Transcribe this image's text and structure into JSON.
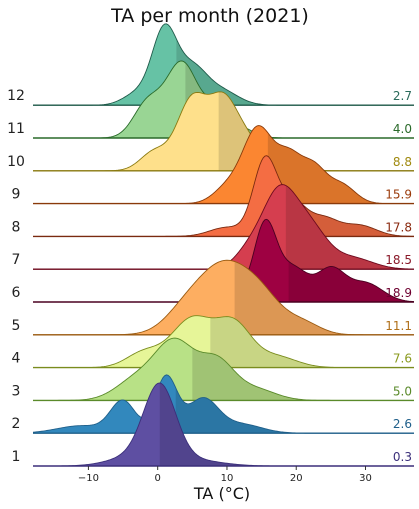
{
  "chart_data": {
    "type": "ridgeline",
    "title": "TA per month (2021)",
    "xlabel": "TA (°C)",
    "ylabel": "",
    "xlim": [
      -18,
      37
    ],
    "xticks": [
      -10,
      0,
      10,
      20,
      30
    ],
    "grid": false,
    "legend": "none",
    "series": [
      {
        "month": "1",
        "mean": "0.3",
        "color": "#5e4fa2",
        "line_color": "#3b2f7a",
        "mean_color": "#3b2f7a",
        "peaks": [
          {
            "mu": 0.3,
            "sigma": 2.3,
            "amp": 1.0
          },
          {
            "mu": -3.5,
            "sigma": 3.5,
            "amp": 0.12
          },
          {
            "mu": 5,
            "sigma": 4,
            "amp": 0.08
          }
        ]
      },
      {
        "month": "2",
        "mean": "2.6",
        "color": "#3288bd",
        "line_color": "#1f5f8a",
        "mean_color": "#1f5f8a",
        "peaks": [
          {
            "mu": 1.2,
            "sigma": 1.6,
            "amp": 0.75
          },
          {
            "mu": -5,
            "sigma": 1.8,
            "amp": 0.42
          },
          {
            "mu": 6.5,
            "sigma": 2.2,
            "amp": 0.45
          },
          {
            "mu": -11,
            "sigma": 3.5,
            "amp": 0.1
          },
          {
            "mu": 12,
            "sigma": 3,
            "amp": 0.12
          }
        ]
      },
      {
        "month": "3",
        "mean": "5.0",
        "color": "#b8e186",
        "line_color": "#5a8a2a",
        "mean_color": "#5a8a2a",
        "peaks": [
          {
            "mu": 2.5,
            "sigma": 2.8,
            "amp": 0.75
          },
          {
            "mu": 8.5,
            "sigma": 2.5,
            "amp": 0.5
          },
          {
            "mu": -3,
            "sigma": 3,
            "amp": 0.28
          },
          {
            "mu": 14,
            "sigma": 3,
            "amp": 0.15
          }
        ]
      },
      {
        "month": "4",
        "mean": "7.6",
        "color": "#e6f598",
        "line_color": "#7a8c1e",
        "mean_color": "#8a9a1e",
        "peaks": [
          {
            "mu": 5,
            "sigma": 3,
            "amp": 0.65
          },
          {
            "mu": 11,
            "sigma": 2.5,
            "amp": 0.55
          },
          {
            "mu": -2,
            "sigma": 2.5,
            "amp": 0.2
          },
          {
            "mu": 17,
            "sigma": 3,
            "amp": 0.15
          }
        ]
      },
      {
        "month": "5",
        "mean": "11.1",
        "color": "#fdae61",
        "line_color": "#9a5a10",
        "mean_color": "#b0701a",
        "peaks": [
          {
            "mu": 9.5,
            "sigma": 3.5,
            "amp": 0.85
          },
          {
            "mu": 15,
            "sigma": 3,
            "amp": 0.45
          },
          {
            "mu": 4,
            "sigma": 3,
            "amp": 0.3
          },
          {
            "mu": 21,
            "sigma": 2.5,
            "amp": 0.15
          }
        ]
      },
      {
        "month": "6",
        "mean": "18.9",
        "color": "#9e0142",
        "line_color": "#4a0020",
        "mean_color": "#6e0030",
        "peaks": [
          {
            "mu": 15.5,
            "sigma": 1.6,
            "amp": 1.0
          },
          {
            "mu": 19.5,
            "sigma": 2.2,
            "amp": 0.45
          },
          {
            "mu": 25,
            "sigma": 2,
            "amp": 0.42
          },
          {
            "mu": 30,
            "sigma": 2.5,
            "amp": 0.25
          },
          {
            "mu": 11,
            "sigma": 2,
            "amp": 0.15
          }
        ]
      },
      {
        "month": "7",
        "mean": "18.5",
        "color": "#d53e4f",
        "line_color": "#6e0a1e",
        "mean_color": "#8a1a2a",
        "peaks": [
          {
            "mu": 17.5,
            "sigma": 2.5,
            "amp": 1.0
          },
          {
            "mu": 22,
            "sigma": 2.5,
            "amp": 0.5
          },
          {
            "mu": 13,
            "sigma": 2,
            "amp": 0.2
          },
          {
            "mu": 28,
            "sigma": 3,
            "amp": 0.15
          }
        ]
      },
      {
        "month": "8",
        "mean": "17.8",
        "color": "#f46d43",
        "line_color": "#7a2a10",
        "mean_color": "#8a2a10",
        "peaks": [
          {
            "mu": 15.5,
            "sigma": 1.7,
            "amp": 1.0
          },
          {
            "mu": 19.5,
            "sigma": 2,
            "amp": 0.45
          },
          {
            "mu": 24,
            "sigma": 2,
            "amp": 0.22
          },
          {
            "mu": 29,
            "sigma": 2.5,
            "amp": 0.15
          },
          {
            "mu": 10,
            "sigma": 2.5,
            "amp": 0.12
          }
        ]
      },
      {
        "month": "9",
        "mean": "15.9",
        "color": "#fb8631",
        "line_color": "#8a3a0a",
        "mean_color": "#9a3a0a",
        "peaks": [
          {
            "mu": 14.5,
            "sigma": 2.2,
            "amp": 1.0
          },
          {
            "mu": 19,
            "sigma": 1.8,
            "amp": 0.55
          },
          {
            "mu": 22.5,
            "sigma": 1.8,
            "amp": 0.45
          },
          {
            "mu": 26.5,
            "sigma": 2,
            "amp": 0.25
          },
          {
            "mu": 10,
            "sigma": 2,
            "amp": 0.2
          }
        ]
      },
      {
        "month": "10",
        "mean": "8.8",
        "color": "#fee08b",
        "line_color": "#8a7a10",
        "mean_color": "#a08a10",
        "peaks": [
          {
            "mu": 5,
            "sigma": 2.2,
            "amp": 0.95
          },
          {
            "mu": 9.5,
            "sigma": 2,
            "amp": 0.85
          },
          {
            "mu": 13,
            "sigma": 2,
            "amp": 0.35
          },
          {
            "mu": -0.5,
            "sigma": 2,
            "amp": 0.25
          },
          {
            "mu": 18,
            "sigma": 2.5,
            "amp": 0.1
          }
        ]
      },
      {
        "month": "11",
        "mean": "4.0",
        "color": "#99d594",
        "line_color": "#2a6a2a",
        "mean_color": "#2a6a2a",
        "peaks": [
          {
            "mu": 3.5,
            "sigma": 2.3,
            "amp": 1.0
          },
          {
            "mu": -1.5,
            "sigma": 2,
            "amp": 0.45
          },
          {
            "mu": 8.5,
            "sigma": 1.8,
            "amp": 0.35
          },
          {
            "mu": 12,
            "sigma": 2,
            "amp": 0.12
          }
        ]
      },
      {
        "month": "12",
        "mean": "2.7",
        "color": "#66c2a5",
        "line_color": "#1f5a4a",
        "mean_color": "#2a6a5a",
        "peaks": [
          {
            "mu": 1.0,
            "sigma": 1.8,
            "amp": 1.0
          },
          {
            "mu": 5,
            "sigma": 2,
            "amp": 0.45
          },
          {
            "mu": 9,
            "sigma": 2.5,
            "amp": 0.2
          },
          {
            "mu": -3,
            "sigma": 2,
            "amp": 0.15
          }
        ]
      }
    ]
  }
}
